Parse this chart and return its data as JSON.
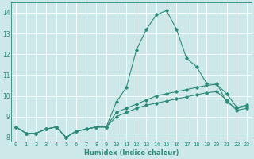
{
  "xlabel": "Humidex (Indice chaleur)",
  "x_values": [
    0,
    1,
    2,
    3,
    4,
    5,
    6,
    7,
    8,
    9,
    10,
    11,
    12,
    13,
    14,
    15,
    16,
    17,
    18,
    19,
    20,
    21,
    22,
    23
  ],
  "line1": [
    8.5,
    8.2,
    8.2,
    8.4,
    8.5,
    8.0,
    8.3,
    8.4,
    8.5,
    8.5,
    9.7,
    10.4,
    12.2,
    13.2,
    13.9,
    14.1,
    13.2,
    11.8,
    11.4,
    10.6,
    10.6,
    9.7,
    9.4,
    9.5
  ],
  "line2": [
    8.5,
    8.2,
    8.2,
    8.4,
    8.5,
    8.0,
    8.3,
    8.4,
    8.5,
    8.5,
    9.2,
    9.4,
    9.6,
    9.8,
    10.0,
    10.1,
    10.2,
    10.3,
    10.4,
    10.5,
    10.55,
    10.1,
    9.45,
    9.55
  ],
  "line3": [
    8.5,
    8.2,
    8.2,
    8.4,
    8.5,
    8.0,
    8.3,
    8.4,
    8.5,
    8.5,
    9.0,
    9.2,
    9.4,
    9.55,
    9.65,
    9.75,
    9.85,
    9.95,
    10.05,
    10.15,
    10.2,
    9.8,
    9.3,
    9.4
  ],
  "line_color": "#2E8B7A",
  "bg_color": "#cce8e8",
  "grid_color": "#ffffff",
  "ylim": [
    7.8,
    14.5
  ],
  "xlim": [
    -0.5,
    23.5
  ]
}
